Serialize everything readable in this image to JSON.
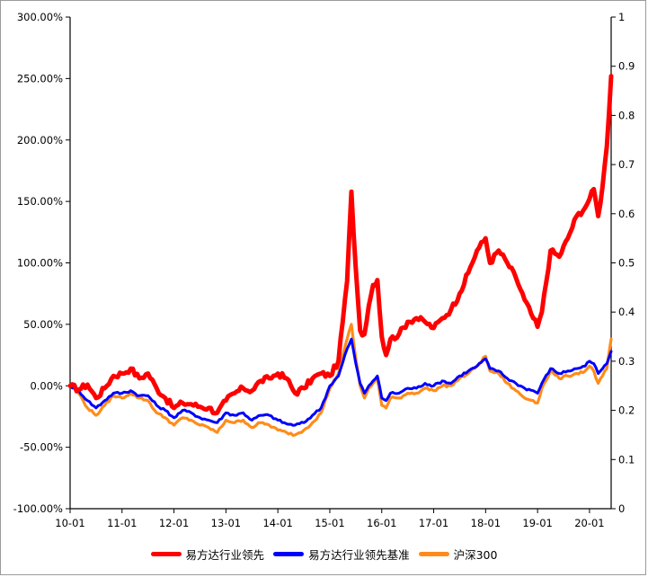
{
  "chart_data": {
    "type": "line",
    "title": "",
    "x_tick_labels": [
      "10-01",
      "11-01",
      "12-01",
      "13-01",
      "14-01",
      "15-01",
      "16-01",
      "17-01",
      "18-01",
      "19-01",
      "20-01"
    ],
    "x_range": [
      "2010-01",
      "2020-06"
    ],
    "y_left": {
      "min": -1.0,
      "max": 3.0,
      "tick_labels": [
        "-100.00%",
        "-50.00%",
        "0.00%",
        "50.00%",
        "100.00%",
        "150.00%",
        "200.00%",
        "250.00%",
        "300.00%"
      ]
    },
    "y_right": {
      "min": 0,
      "max": 1,
      "tick_labels": [
        "0",
        "0.1",
        "0.2",
        "0.3",
        "0.4",
        "0.5",
        "0.6",
        "0.7",
        "0.8",
        "0.9",
        "1"
      ]
    },
    "grid": false,
    "legend_position": "bottom",
    "series": [
      {
        "name": "易方达行业领先",
        "color": "#ff0000",
        "points": [
          [
            "2010-01",
            0.0
          ],
          [
            "2010-03",
            -0.03
          ],
          [
            "2010-05",
            0.01
          ],
          [
            "2010-07",
            -0.1
          ],
          [
            "2010-09",
            -0.02
          ],
          [
            "2010-11",
            0.08
          ],
          [
            "2011-01",
            0.1
          ],
          [
            "2011-03",
            0.14
          ],
          [
            "2011-05",
            0.06
          ],
          [
            "2011-07",
            0.1
          ],
          [
            "2011-09",
            -0.02
          ],
          [
            "2011-11",
            -0.1
          ],
          [
            "2012-01",
            -0.18
          ],
          [
            "2012-03",
            -0.14
          ],
          [
            "2012-05",
            -0.15
          ],
          [
            "2012-07",
            -0.17
          ],
          [
            "2012-09",
            -0.18
          ],
          [
            "2012-11",
            -0.22
          ],
          [
            "2013-01",
            -0.12
          ],
          [
            "2013-03",
            -0.06
          ],
          [
            "2013-05",
            -0.02
          ],
          [
            "2013-07",
            -0.04
          ],
          [
            "2013-09",
            0.04
          ],
          [
            "2013-11",
            0.06
          ],
          [
            "2014-01",
            0.1
          ],
          [
            "2014-03",
            0.06
          ],
          [
            "2014-05",
            -0.06
          ],
          [
            "2014-07",
            -0.02
          ],
          [
            "2014-09",
            0.06
          ],
          [
            "2014-11",
            0.1
          ],
          [
            "2015-01",
            0.08
          ],
          [
            "2015-03",
            0.2
          ],
          [
            "2015-05",
            0.85
          ],
          [
            "2015-06",
            1.58
          ],
          [
            "2015-07",
            0.95
          ],
          [
            "2015-08",
            0.45
          ],
          [
            "2015-09",
            0.42
          ],
          [
            "2015-10",
            0.65
          ],
          [
            "2015-11",
            0.82
          ],
          [
            "2015-12",
            0.86
          ],
          [
            "2016-01",
            0.4
          ],
          [
            "2016-02",
            0.25
          ],
          [
            "2016-03",
            0.38
          ],
          [
            "2016-05",
            0.42
          ],
          [
            "2016-07",
            0.52
          ],
          [
            "2016-09",
            0.55
          ],
          [
            "2016-11",
            0.52
          ],
          [
            "2017-01",
            0.47
          ],
          [
            "2017-03",
            0.55
          ],
          [
            "2017-05",
            0.62
          ],
          [
            "2017-07",
            0.75
          ],
          [
            "2017-09",
            0.92
          ],
          [
            "2017-11",
            1.1
          ],
          [
            "2018-01",
            1.2
          ],
          [
            "2018-02",
            1.0
          ],
          [
            "2018-04",
            1.1
          ],
          [
            "2018-06",
            1.0
          ],
          [
            "2018-08",
            0.88
          ],
          [
            "2018-10",
            0.7
          ],
          [
            "2018-12",
            0.55
          ],
          [
            "2019-01",
            0.48
          ],
          [
            "2019-02",
            0.6
          ],
          [
            "2019-04",
            1.1
          ],
          [
            "2019-06",
            1.05
          ],
          [
            "2019-08",
            1.2
          ],
          [
            "2019-10",
            1.38
          ],
          [
            "2019-12",
            1.45
          ],
          [
            "2020-01",
            1.52
          ],
          [
            "2020-02",
            1.6
          ],
          [
            "2020-03",
            1.38
          ],
          [
            "2020-04",
            1.62
          ],
          [
            "2020-05",
            1.95
          ],
          [
            "2020-06",
            2.52
          ]
        ]
      },
      {
        "name": "易方达行业领先基准",
        "color": "#0000ff",
        "points": [
          [
            "2010-01",
            0.0
          ],
          [
            "2010-03",
            -0.04
          ],
          [
            "2010-05",
            -0.12
          ],
          [
            "2010-07",
            -0.18
          ],
          [
            "2010-09",
            -0.12
          ],
          [
            "2010-11",
            -0.06
          ],
          [
            "2011-01",
            -0.06
          ],
          [
            "2011-03",
            -0.04
          ],
          [
            "2011-05",
            -0.08
          ],
          [
            "2011-07",
            -0.08
          ],
          [
            "2011-09",
            -0.16
          ],
          [
            "2011-11",
            -0.2
          ],
          [
            "2012-01",
            -0.26
          ],
          [
            "2012-03",
            -0.2
          ],
          [
            "2012-05",
            -0.22
          ],
          [
            "2012-07",
            -0.26
          ],
          [
            "2012-09",
            -0.28
          ],
          [
            "2012-11",
            -0.3
          ],
          [
            "2013-01",
            -0.22
          ],
          [
            "2013-03",
            -0.24
          ],
          [
            "2013-05",
            -0.22
          ],
          [
            "2013-07",
            -0.28
          ],
          [
            "2013-09",
            -0.24
          ],
          [
            "2013-11",
            -0.24
          ],
          [
            "2014-01",
            -0.28
          ],
          [
            "2014-03",
            -0.31
          ],
          [
            "2014-05",
            -0.32
          ],
          [
            "2014-07",
            -0.3
          ],
          [
            "2014-09",
            -0.24
          ],
          [
            "2014-11",
            -0.18
          ],
          [
            "2015-01",
            0.0
          ],
          [
            "2015-03",
            0.08
          ],
          [
            "2015-05",
            0.3
          ],
          [
            "2015-06",
            0.38
          ],
          [
            "2015-07",
            0.18
          ],
          [
            "2015-08",
            0.02
          ],
          [
            "2015-09",
            -0.06
          ],
          [
            "2015-10",
            0.0
          ],
          [
            "2015-11",
            0.04
          ],
          [
            "2015-12",
            0.08
          ],
          [
            "2016-01",
            -0.1
          ],
          [
            "2016-02",
            -0.12
          ],
          [
            "2016-03",
            -0.06
          ],
          [
            "2016-05",
            -0.06
          ],
          [
            "2016-07",
            -0.02
          ],
          [
            "2016-09",
            -0.02
          ],
          [
            "2016-11",
            0.02
          ],
          [
            "2017-01",
            0.0
          ],
          [
            "2017-03",
            0.04
          ],
          [
            "2017-05",
            0.02
          ],
          [
            "2017-07",
            0.08
          ],
          [
            "2017-09",
            0.12
          ],
          [
            "2017-11",
            0.16
          ],
          [
            "2018-01",
            0.22
          ],
          [
            "2018-02",
            0.14
          ],
          [
            "2018-04",
            0.12
          ],
          [
            "2018-06",
            0.06
          ],
          [
            "2018-08",
            0.02
          ],
          [
            "2018-10",
            -0.02
          ],
          [
            "2018-12",
            -0.04
          ],
          [
            "2019-01",
            -0.06
          ],
          [
            "2019-02",
            0.02
          ],
          [
            "2019-04",
            0.14
          ],
          [
            "2019-06",
            0.1
          ],
          [
            "2019-08",
            0.12
          ],
          [
            "2019-10",
            0.14
          ],
          [
            "2019-12",
            0.16
          ],
          [
            "2020-01",
            0.2
          ],
          [
            "2020-02",
            0.18
          ],
          [
            "2020-03",
            0.1
          ],
          [
            "2020-04",
            0.14
          ],
          [
            "2020-05",
            0.18
          ],
          [
            "2020-06",
            0.28
          ]
        ]
      },
      {
        "name": "沪深300",
        "color": "#ff8c1a",
        "points": [
          [
            "2010-01",
            0.0
          ],
          [
            "2010-03",
            -0.06
          ],
          [
            "2010-05",
            -0.18
          ],
          [
            "2010-07",
            -0.24
          ],
          [
            "2010-09",
            -0.16
          ],
          [
            "2010-11",
            -0.08
          ],
          [
            "2011-01",
            -0.1
          ],
          [
            "2011-03",
            -0.06
          ],
          [
            "2011-05",
            -0.1
          ],
          [
            "2011-07",
            -0.12
          ],
          [
            "2011-09",
            -0.22
          ],
          [
            "2011-11",
            -0.26
          ],
          [
            "2012-01",
            -0.32
          ],
          [
            "2012-03",
            -0.26
          ],
          [
            "2012-05",
            -0.28
          ],
          [
            "2012-07",
            -0.32
          ],
          [
            "2012-09",
            -0.34
          ],
          [
            "2012-11",
            -0.38
          ],
          [
            "2013-01",
            -0.28
          ],
          [
            "2013-03",
            -0.3
          ],
          [
            "2013-05",
            -0.28
          ],
          [
            "2013-07",
            -0.34
          ],
          [
            "2013-09",
            -0.3
          ],
          [
            "2013-11",
            -0.32
          ],
          [
            "2014-01",
            -0.36
          ],
          [
            "2014-03",
            -0.38
          ],
          [
            "2014-05",
            -0.4
          ],
          [
            "2014-07",
            -0.36
          ],
          [
            "2014-09",
            -0.3
          ],
          [
            "2014-11",
            -0.22
          ],
          [
            "2015-01",
            -0.02
          ],
          [
            "2015-03",
            0.1
          ],
          [
            "2015-05",
            0.38
          ],
          [
            "2015-06",
            0.5
          ],
          [
            "2015-07",
            0.22
          ],
          [
            "2015-08",
            0.0
          ],
          [
            "2015-09",
            -0.1
          ],
          [
            "2015-10",
            -0.02
          ],
          [
            "2015-11",
            0.02
          ],
          [
            "2015-12",
            0.06
          ],
          [
            "2016-01",
            -0.16
          ],
          [
            "2016-02",
            -0.18
          ],
          [
            "2016-03",
            -0.1
          ],
          [
            "2016-05",
            -0.1
          ],
          [
            "2016-07",
            -0.06
          ],
          [
            "2016-09",
            -0.06
          ],
          [
            "2016-11",
            -0.02
          ],
          [
            "2017-01",
            -0.04
          ],
          [
            "2017-03",
            0.0
          ],
          [
            "2017-05",
            0.0
          ],
          [
            "2017-07",
            0.06
          ],
          [
            "2017-09",
            0.1
          ],
          [
            "2017-11",
            0.16
          ],
          [
            "2018-01",
            0.24
          ],
          [
            "2018-02",
            0.12
          ],
          [
            "2018-04",
            0.1
          ],
          [
            "2018-06",
            0.02
          ],
          [
            "2018-08",
            -0.04
          ],
          [
            "2018-10",
            -0.1
          ],
          [
            "2018-12",
            -0.12
          ],
          [
            "2019-01",
            -0.14
          ],
          [
            "2019-02",
            -0.02
          ],
          [
            "2019-04",
            0.12
          ],
          [
            "2019-06",
            0.06
          ],
          [
            "2019-08",
            0.08
          ],
          [
            "2019-10",
            0.1
          ],
          [
            "2019-12",
            0.12
          ],
          [
            "2020-01",
            0.16
          ],
          [
            "2020-02",
            0.12
          ],
          [
            "2020-03",
            0.02
          ],
          [
            "2020-04",
            0.08
          ],
          [
            "2020-05",
            0.14
          ],
          [
            "2020-06",
            0.38
          ]
        ]
      }
    ]
  }
}
